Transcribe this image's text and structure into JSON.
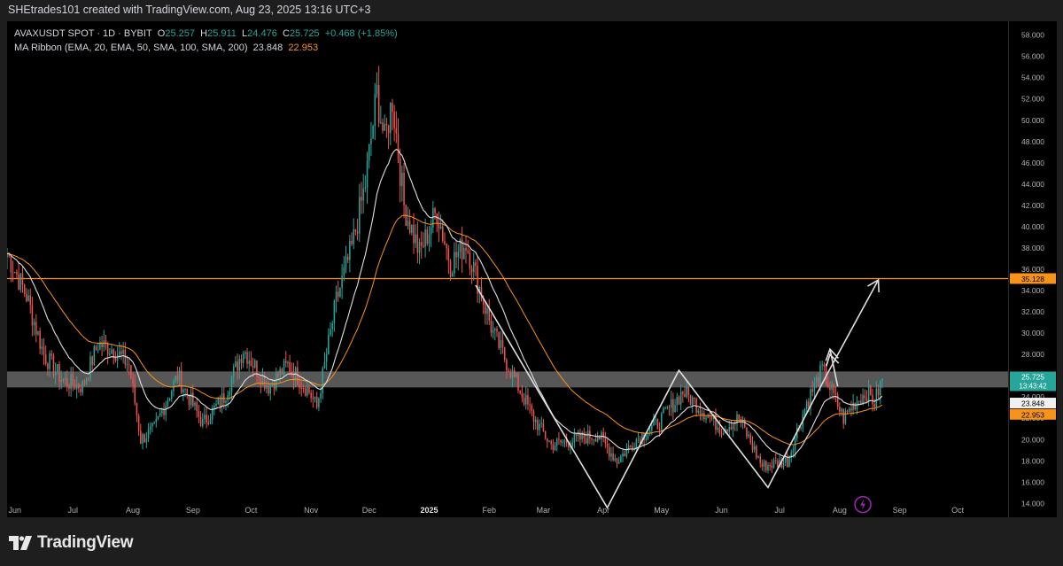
{
  "header": {
    "attribution": "SHEtrades101 created with TradingView.com, Aug 23, 2025 13:16 UTC+3"
  },
  "legend": {
    "symbol_line": "AVAXUSDT SPOT · 1D · BYBIT",
    "o_label": "O",
    "o_value": "25.257",
    "h_label": "H",
    "h_value": "25.911",
    "l_label": "L",
    "l_value": "24.476",
    "c_label": "C",
    "c_value": "25.725",
    "change": "+0.468 (+1.85%)",
    "ma_label": "MA Ribbon (EMA, 20, EMA, 50, SMA, 100, SMA, 200)",
    "ma1_value": "23.848",
    "ma2_value": "22.953"
  },
  "footer": {
    "brand": "TradingView"
  },
  "colors": {
    "up": "#26a69a",
    "down": "#ef5350",
    "ema20": "#e0e0e0",
    "ema50": "#f7931a",
    "resistance_line": "#f7931a",
    "zone": "#9e9e9e",
    "drawing": "#e0e0e0",
    "accent_icon": "#9c27b0"
  },
  "chart_data": {
    "type": "candlestick",
    "title": "AVAXUSDT SPOT · 1D · BYBIT",
    "ylim": [
      12.7,
      59.3
    ],
    "price_ticks": [
      "58.000",
      "56.000",
      "54.000",
      "52.000",
      "50.000",
      "48.000",
      "46.000",
      "44.000",
      "42.000",
      "40.000",
      "38.000",
      "36.000",
      "34.000",
      "32.000",
      "30.000",
      "28.000",
      "26.000",
      "24.000",
      "22.000",
      "20.000",
      "18.000",
      "16.000",
      "14.000"
    ],
    "time_ticks": [
      "Jun",
      "Jul",
      "Aug",
      "Sep",
      "Oct",
      "Nov",
      "Dec",
      "2025",
      "Feb",
      "Mar",
      "Apr",
      "May",
      "Jun",
      "Jul",
      "Aug",
      "Sep",
      "Oct"
    ],
    "time_tick_dates": [
      "2024-06-01",
      "2024-07-01",
      "2024-08-01",
      "2024-09-01",
      "2024-10-01",
      "2024-11-01",
      "2024-12-01",
      "2025-01-01",
      "2025-02-01",
      "2025-03-01",
      "2025-04-01",
      "2025-05-01",
      "2025-06-01",
      "2025-07-01",
      "2025-08-01",
      "2025-09-01",
      "2025-10-01"
    ],
    "x_range": [
      "2024-05-28",
      "2025-10-27"
    ],
    "anchors": [
      [
        "2024-05-28",
        37.5
      ],
      [
        "2024-06-07",
        33.5
      ],
      [
        "2024-06-16",
        28.0
      ],
      [
        "2024-06-26",
        25.5
      ],
      [
        "2024-07-06",
        25.0
      ],
      [
        "2024-07-14",
        29.0
      ],
      [
        "2024-07-22",
        28.5
      ],
      [
        "2024-07-30",
        27.0
      ],
      [
        "2024-08-05",
        20.0
      ],
      [
        "2024-08-12",
        21.0
      ],
      [
        "2024-08-24",
        26.0
      ],
      [
        "2024-09-06",
        21.5
      ],
      [
        "2024-09-17",
        24.0
      ],
      [
        "2024-09-27",
        28.5
      ],
      [
        "2024-10-10",
        25.0
      ],
      [
        "2024-10-20",
        27.0
      ],
      [
        "2024-10-31",
        24.5
      ],
      [
        "2024-11-04",
        23.0
      ],
      [
        "2024-11-14",
        33.0
      ],
      [
        "2024-11-22",
        38.0
      ],
      [
        "2024-11-29",
        44.0
      ],
      [
        "2024-12-05",
        52.5
      ],
      [
        "2024-12-09",
        48.0
      ],
      [
        "2024-12-13",
        52.0
      ],
      [
        "2024-12-19",
        42.0
      ],
      [
        "2024-12-27",
        37.5
      ],
      [
        "2025-01-05",
        41.5
      ],
      [
        "2025-01-12",
        36.5
      ],
      [
        "2025-01-20",
        38.5
      ],
      [
        "2025-02-03",
        30.0
      ],
      [
        "2025-02-12",
        26.5
      ],
      [
        "2025-02-24",
        22.0
      ],
      [
        "2025-03-05",
        19.5
      ],
      [
        "2025-03-18",
        20.0
      ],
      [
        "2025-03-29",
        20.5
      ],
      [
        "2025-04-08",
        18.0
      ],
      [
        "2025-04-18",
        20.0
      ],
      [
        "2025-04-29",
        21.5
      ],
      [
        "2025-05-12",
        24.5
      ],
      [
        "2025-05-18",
        23.5
      ],
      [
        "2025-06-01",
        21.0
      ],
      [
        "2025-06-10",
        22.0
      ],
      [
        "2025-06-22",
        17.5
      ],
      [
        "2025-07-05",
        18.0
      ],
      [
        "2025-07-15",
        23.5
      ],
      [
        "2025-07-23",
        26.5
      ],
      [
        "2025-08-03",
        22.0
      ],
      [
        "2025-08-09",
        23.5
      ],
      [
        "2025-08-15",
        24.5
      ],
      [
        "2025-08-19",
        23.5
      ],
      [
        "2025-08-23",
        25.725
      ]
    ],
    "series": [
      {
        "name": "EMA 20",
        "value": 23.848
      },
      {
        "name": "EMA 50",
        "value": 22.953
      }
    ],
    "last_price": {
      "value": 25.725,
      "countdown": "13:43:42"
    },
    "annotations": {
      "horizontal_line": {
        "price": 35.128,
        "label": "35.128"
      },
      "zone": {
        "from": 24.9,
        "to": 26.4
      },
      "w_pattern": [
        [
          "2025-01-25",
          34.5
        ],
        [
          "2025-04-03",
          13.6
        ],
        [
          "2025-05-10",
          26.5
        ],
        [
          "2025-06-25",
          15.5
        ],
        [
          "2025-07-26",
          26.3
        ],
        [
          "2025-08-21",
          35.0
        ]
      ],
      "small_arrow": [
        [
          "2025-07-31",
          25.0
        ],
        [
          "2025-07-27",
          28.5
        ]
      ]
    }
  }
}
